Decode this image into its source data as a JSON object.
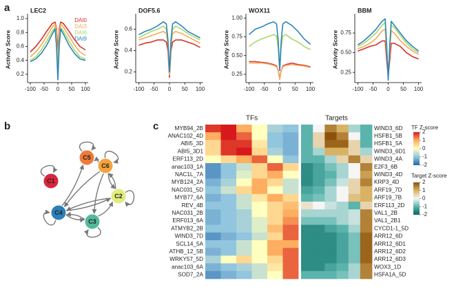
{
  "panels": [
    "a",
    "b",
    "c"
  ],
  "chart_data": [
    {
      "type": "line",
      "title": "LEC2",
      "ylabel": "Activity Score",
      "legend": "top right",
      "x": [
        -100,
        -80,
        -60,
        -40,
        -20,
        -10,
        -5,
        0,
        5,
        10,
        20,
        40,
        60,
        80,
        100
      ],
      "xlim": [
        -110,
        110
      ],
      "xticks": [
        -100,
        -50,
        0,
        50,
        100
      ],
      "ylim": [
        0.08,
        1.03
      ],
      "yticks": [
        0.2,
        0.4,
        0.6,
        0.8,
        {
          "value": 1.0,
          "label": "1.0"
        }
      ],
      "series": [
        {
          "name": "DAI0",
          "color": "#d73027",
          "values": [
            0.52,
            0.6,
            0.7,
            0.82,
            0.93,
            0.95,
            0.85,
            0.55,
            0.85,
            0.95,
            0.93,
            0.82,
            0.7,
            0.6,
            0.55
          ]
        },
        {
          "name": "DAI3",
          "color": "#f5a95a",
          "values": [
            0.45,
            0.52,
            0.62,
            0.75,
            0.88,
            0.92,
            0.8,
            0.35,
            0.8,
            0.92,
            0.88,
            0.75,
            0.62,
            0.52,
            0.47
          ]
        },
        {
          "name": "DAI6",
          "color": "#a6d96a",
          "values": [
            0.4,
            0.45,
            0.55,
            0.68,
            0.82,
            0.88,
            0.7,
            0.2,
            0.7,
            0.88,
            0.82,
            0.68,
            0.55,
            0.45,
            0.42
          ]
        },
        {
          "name": "DAI9",
          "color": "#2b83ba",
          "values": [
            0.38,
            0.42,
            0.5,
            0.62,
            0.78,
            0.85,
            0.6,
            0.12,
            0.6,
            0.85,
            0.78,
            0.62,
            0.5,
            0.42,
            0.4
          ]
        }
      ]
    },
    {
      "type": "line",
      "title": "DOF5.6",
      "ylabel": "Activity Score",
      "x": [
        -100,
        -80,
        -60,
        -40,
        -20,
        -10,
        -5,
        0,
        5,
        10,
        20,
        40,
        60,
        80,
        100
      ],
      "xlim": [
        -110,
        110
      ],
      "xticks": [
        -100,
        -50,
        0,
        50,
        100
      ],
      "ylim": [
        0.1,
        0.72
      ],
      "yticks": [
        0.2,
        0.4,
        0.6
      ],
      "series": [
        {
          "color": "#d73027",
          "values": [
            0.45,
            0.47,
            0.48,
            0.5,
            0.5,
            0.48,
            0.4,
            0.15,
            0.4,
            0.48,
            0.5,
            0.5,
            0.48,
            0.46,
            0.43
          ]
        },
        {
          "color": "#f5a95a",
          "values": [
            0.5,
            0.52,
            0.54,
            0.56,
            0.58,
            0.56,
            0.45,
            0.17,
            0.45,
            0.56,
            0.58,
            0.56,
            0.53,
            0.5,
            0.47
          ]
        },
        {
          "color": "#a6d96a",
          "values": [
            0.52,
            0.55,
            0.58,
            0.6,
            0.63,
            0.6,
            0.48,
            0.18,
            0.48,
            0.6,
            0.63,
            0.6,
            0.56,
            0.53,
            0.5
          ]
        },
        {
          "color": "#2b83ba",
          "values": [
            0.55,
            0.58,
            0.6,
            0.63,
            0.67,
            0.65,
            0.5,
            0.2,
            0.5,
            0.65,
            0.67,
            0.63,
            0.58,
            0.55,
            0.52
          ]
        }
      ]
    },
    {
      "type": "line",
      "title": "WOX11",
      "ylabel": "Activity Score",
      "x": [
        -100,
        -80,
        -60,
        -40,
        -20,
        -10,
        -5,
        0,
        5,
        10,
        20,
        40,
        60,
        80,
        100
      ],
      "xlim": [
        -110,
        110
      ],
      "xticks": [
        -100,
        -50,
        0,
        50,
        100
      ],
      "ylim": [
        0.14,
        1.02
      ],
      "yticks": [
        0.25,
        {
          "value": 0.5,
          "label": "0.50"
        },
        0.75,
        {
          "value": 1.0,
          "label": "1.00"
        }
      ],
      "series": [
        {
          "color": "#d73027",
          "values": [
            0.42,
            0.42,
            0.41,
            0.4,
            0.38,
            0.36,
            0.3,
            0.2,
            0.3,
            0.36,
            0.38,
            0.4,
            0.38,
            0.37,
            0.35
          ]
        },
        {
          "color": "#f5a95a",
          "values": [
            0.4,
            0.4,
            0.4,
            0.39,
            0.37,
            0.35,
            0.3,
            0.18,
            0.3,
            0.35,
            0.37,
            0.38,
            0.37,
            0.36,
            0.34
          ]
        },
        {
          "color": "#a6d96a",
          "values": [
            0.62,
            0.68,
            0.72,
            0.75,
            0.78,
            0.76,
            0.6,
            0.3,
            0.6,
            0.76,
            0.78,
            0.72,
            0.68,
            0.62,
            0.58
          ]
        },
        {
          "color": "#2b83ba",
          "values": [
            0.78,
            0.85,
            0.88,
            0.92,
            0.95,
            0.92,
            0.7,
            0.3,
            0.7,
            0.92,
            0.95,
            0.9,
            0.82,
            0.72,
            0.65
          ]
        }
      ]
    },
    {
      "type": "line",
      "title": "BBM",
      "ylabel": "Activity Score",
      "x": [
        -100,
        -80,
        -60,
        -40,
        -20,
        -10,
        -5,
        0,
        5,
        10,
        20,
        40,
        60,
        80,
        100
      ],
      "xlim": [
        -110,
        110
      ],
      "xticks": [
        -100,
        -50,
        0,
        50,
        100
      ],
      "ylim": [
        0.12,
        0.96
      ],
      "yticks": [
        0.25,
        {
          "value": 0.5,
          "label": "0.50"
        },
        0.75
      ],
      "series": [
        {
          "color": "#d73027",
          "values": [
            0.52,
            0.55,
            0.58,
            0.6,
            0.65,
            0.65,
            0.4,
            0.2,
            0.4,
            0.62,
            0.62,
            0.58,
            0.5,
            0.45,
            0.42
          ]
        },
        {
          "color": "#f5a95a",
          "values": [
            0.55,
            0.58,
            0.62,
            0.68,
            0.78,
            0.8,
            0.5,
            0.2,
            0.5,
            0.78,
            0.75,
            0.65,
            0.58,
            0.52,
            0.48
          ]
        },
        {
          "color": "#a6d96a",
          "values": [
            0.58,
            0.62,
            0.68,
            0.75,
            0.85,
            0.88,
            0.55,
            0.18,
            0.55,
            0.85,
            0.82,
            0.72,
            0.62,
            0.55,
            0.5
          ]
        },
        {
          "color": "#2b83ba",
          "values": [
            0.6,
            0.65,
            0.72,
            0.8,
            0.9,
            0.93,
            0.6,
            0.15,
            0.6,
            0.9,
            0.85,
            0.75,
            0.65,
            0.58,
            0.52
          ]
        }
      ]
    },
    {
      "type": "heatmap",
      "zlim": [
        -2,
        2
      ],
      "blocks": [
        {
          "title": "TFs",
          "colorbar_title": "TF Z-score",
          "zticks": [
            2,
            1,
            0,
            -1,
            -2
          ],
          "colors": [
            "#2166ac",
            "#92c5de",
            "#ffffbf",
            "#fdae61",
            "#d7191c"
          ],
          "rows": [
            "MYB94_2B",
            "ANAC102_4D",
            "ABI5_3D",
            "ABI5_3D1",
            "ERF113_2D",
            "anac103_1A",
            "NAC1L_7A",
            "MYB124_2A",
            "NAC031_5D",
            "MYB77_6A",
            "REV_4B",
            "NAC031_2B",
            "ERF013_6A",
            "ATMYB2_2B",
            "WIND3_7D",
            "SCL14_5A",
            "ATHB_12_5B",
            "WRKY57_5D",
            "anac103_6A",
            "SOD7_2A"
          ],
          "values": [
            [
              1.8,
              2,
              1,
              0,
              -0.8,
              -1
            ],
            [
              1,
              2,
              1.5,
              0,
              -1,
              -1.2
            ],
            [
              0.5,
              1.8,
              1.8,
              0.3,
              -1,
              -1.2
            ],
            [
              0.5,
              1.8,
              2,
              0.5,
              -0.8,
              -1.2
            ],
            [
              0,
              0.5,
              1,
              1.5,
              0,
              -1
            ],
            [
              -1.5,
              -1,
              -0.5,
              0.5,
              1.5,
              0.5
            ],
            [
              -1.5,
              -1,
              -0.3,
              0.5,
              1,
              0
            ],
            [
              -1.2,
              -0.8,
              0,
              1,
              0.5,
              -0.5
            ],
            [
              -1,
              -0.5,
              0.5,
              1,
              0,
              -0.5
            ],
            [
              -1.2,
              -1,
              -0.5,
              0.3,
              1,
              0.5
            ],
            [
              -1,
              -1,
              -0.5,
              0,
              0.5,
              0.8
            ],
            [
              -1.2,
              -1,
              -0.8,
              0,
              0.5,
              1
            ],
            [
              -1.2,
              -1,
              -0.8,
              -0.3,
              0.5,
              1.2
            ],
            [
              -1,
              -1,
              -0.8,
              -0.3,
              0.8,
              1.5
            ],
            [
              -1.5,
              -1.2,
              -1,
              -0.5,
              0.5,
              1.5
            ],
            [
              -1,
              -1,
              -0.5,
              0,
              1,
              1
            ],
            [
              -1.2,
              -1,
              -0.5,
              0,
              1,
              1.5
            ],
            [
              -0.8,
              0,
              0.5,
              0,
              0.5,
              1.5
            ],
            [
              -1.2,
              -1,
              -0.8,
              -0.5,
              0.3,
              1.5
            ],
            [
              -1.5,
              -1.2,
              -1,
              -0.5,
              0,
              1.5
            ]
          ]
        },
        {
          "title": "Targets",
          "colorbar_title": "Target Z-score",
          "zticks": [
            2,
            1,
            0,
            -1,
            -2
          ],
          "colors": [
            "#01665e",
            "#5ab4ac",
            "#f5f5f5",
            "#d8b365",
            "#8c510a"
          ],
          "rows": [
            "WIND3_6D",
            "HSFB1_5B",
            "HSFB1_5A",
            "WIND3_6D1",
            "WIND3_4A",
            "E2F3_6B",
            "WIND3_4D",
            "KRP3_4D",
            "ARF19_7D",
            "ARF19_7B",
            "ERF113_2D",
            "VAL1_2B",
            "VAL1_2B1",
            "CYCD1-1_5D",
            "ARR12_6D",
            "ARR12_6D1",
            "ARR12_6D2",
            "ARR12_6D3",
            "WOX3_1D",
            "HSFA1A_5D"
          ],
          "values": [
            [
              -1,
              0,
              1.5,
              1,
              -0.5,
              -1
            ],
            [
              -1,
              0.5,
              2,
              1.5,
              0,
              -1
            ],
            [
              -1,
              0.5,
              1.8,
              1.8,
              0.5,
              -1
            ],
            [
              -1,
              -0.5,
              1,
              1,
              0.5,
              -0.5
            ],
            [
              -1,
              -1,
              -0.5,
              0.5,
              1.5,
              0.5
            ],
            [
              -1.5,
              -1.2,
              -0.8,
              -0.5,
              0,
              1.5
            ],
            [
              -1.5,
              -1.2,
              -1,
              -0.5,
              0,
              1.2
            ],
            [
              -1.5,
              -1.2,
              -0.8,
              -0.3,
              0.5,
              1.5
            ],
            [
              -1.2,
              -1,
              -0.5,
              0,
              0.5,
              1
            ],
            [
              -1,
              -0.8,
              -0.5,
              0,
              0.8,
              1
            ],
            [
              0.3,
              0,
              -0.3,
              -0.5,
              -1,
              0.5
            ],
            [
              -0.5,
              -0.5,
              -0.5,
              -0.5,
              -0.3,
              1.5
            ],
            [
              -0.8,
              -0.8,
              -0.8,
              -0.5,
              -0.3,
              1.5
            ],
            [
              -1.5,
              -1.5,
              -1.2,
              -1,
              -0.5,
              1.5
            ],
            [
              -1.5,
              -1.5,
              -1.5,
              -1.2,
              -0.8,
              1.8
            ],
            [
              -1.5,
              -1.5,
              -1.5,
              -1.2,
              -0.8,
              1.8
            ],
            [
              -1.5,
              -1.5,
              -1.5,
              -1.2,
              -0.8,
              1.8
            ],
            [
              -1.5,
              -1.5,
              -1.5,
              -1.2,
              -0.8,
              1.8
            ],
            [
              -1.5,
              -1.5,
              -1.2,
              -1,
              -0.5,
              1.5
            ],
            [
              -1,
              -1,
              -1,
              -0.8,
              -0.5,
              1.5
            ]
          ]
        }
      ]
    }
  ],
  "network": {
    "nodes": [
      {
        "label": "C1",
        "color": "#d7263d"
      },
      {
        "label": "C5",
        "color": "#f07a3a"
      },
      {
        "label": "C6",
        "color": "#f3a43c"
      },
      {
        "label": "C2",
        "color": "#e2ec7e"
      },
      {
        "label": "C4",
        "color": "#2c7fb8"
      },
      {
        "label": "C3",
        "color": "#52b99b"
      }
    ],
    "edges": [
      [
        "C1",
        "C1"
      ],
      [
        "C5",
        "C5"
      ],
      [
        "C6",
        "C6"
      ],
      [
        "C2",
        "C2"
      ],
      [
        "C4",
        "C4"
      ],
      [
        "C3",
        "C3"
      ],
      [
        "C6",
        "C5"
      ],
      [
        "C4",
        "C5"
      ],
      [
        "C6",
        "C2"
      ],
      [
        "C6",
        "C4"
      ],
      [
        "C6",
        "C3"
      ],
      [
        "C4",
        "C2"
      ],
      [
        "C2",
        "C4"
      ],
      [
        "C3",
        "C2"
      ],
      [
        "C4",
        "C3"
      ],
      [
        "C3",
        "C4"
      ],
      [
        "C2",
        "C6"
      ]
    ]
  }
}
